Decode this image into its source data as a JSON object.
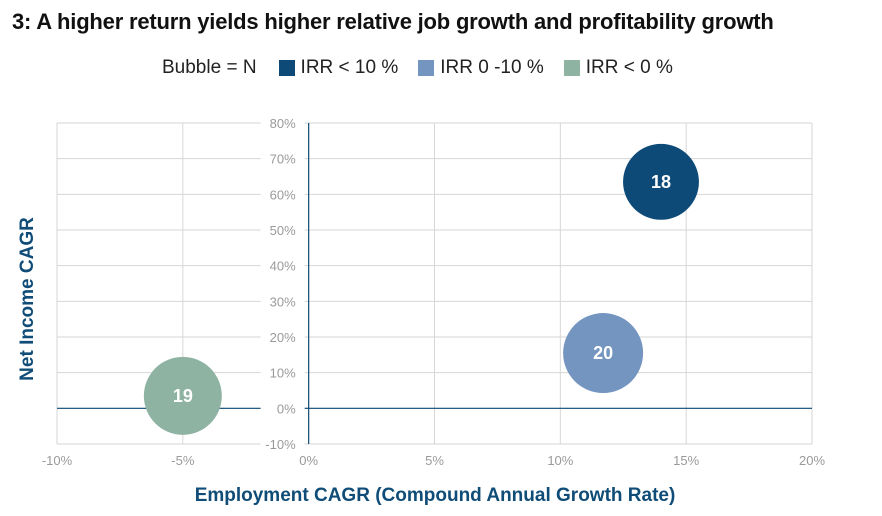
{
  "title": "3: A higher return yields higher relative job growth and profitability growth",
  "legend": {
    "lead": "Bubble = N",
    "items": [
      {
        "label": "IRR < 10 %",
        "color": "#0d4a78"
      },
      {
        "label": "IRR 0 -10 %",
        "color": "#7395c0"
      },
      {
        "label": "IRR < 0 %",
        "color": "#8fb3a3"
      }
    ]
  },
  "chart_data": {
    "type": "scatter",
    "title": "3: A higher return yields higher relative job growth and profitability growth",
    "xlabel": "Employment CAGR (Compound Annual Growth Rate)",
    "ylabel": "Net Income CAGR",
    "xlim": [
      -10,
      20
    ],
    "ylim": [
      -10,
      80
    ],
    "x_ticks": [
      "-10%",
      "-5%",
      "0%",
      "5%",
      "10%",
      "15%",
      "20%"
    ],
    "y_ticks": [
      "-10%",
      "0%",
      "10%",
      "20%",
      "30%",
      "40%",
      "50%",
      "60%",
      "70%",
      "80%"
    ],
    "grid": true,
    "legend_position": "top",
    "series": [
      {
        "name": "IRR < 10 %",
        "x": 14,
        "y": 63.5,
        "size": 18,
        "color": "#0d4a78"
      },
      {
        "name": "IRR 0 -10 %",
        "x": 11.7,
        "y": 15.5,
        "size": 20,
        "color": "#7395c0"
      },
      {
        "name": "IRR < 0 %",
        "x": -5,
        "y": 3.5,
        "size": 19,
        "color": "#8fb3a3"
      }
    ]
  }
}
